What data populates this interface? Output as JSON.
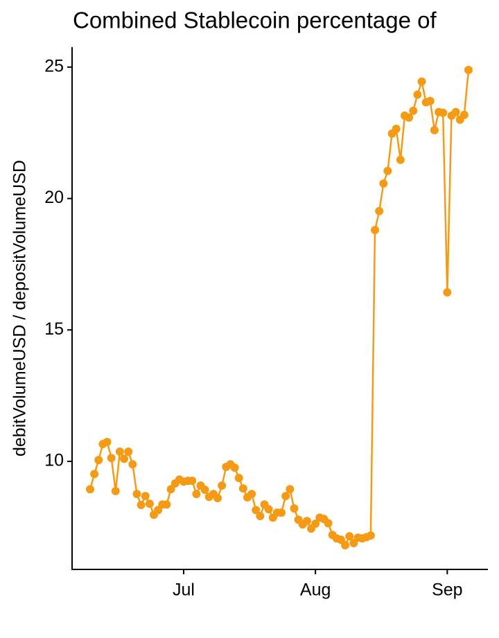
{
  "chart_data": {
    "type": "line",
    "title": "Combined Stablecoin percentage of",
    "y_label": "debitVolumeUSD / depositVolumeUSD",
    "color": "#f59a14",
    "categories": [
      null,
      null,
      null,
      null,
      null,
      null,
      null,
      null,
      null,
      null,
      null,
      null,
      null,
      null,
      null,
      null,
      null,
      null,
      null,
      null,
      null,
      null,
      "Jul",
      null,
      null,
      null,
      null,
      null,
      null,
      null,
      null,
      null,
      null,
      null,
      null,
      null,
      null,
      null,
      null,
      null,
      null,
      null,
      null,
      null,
      null,
      null,
      null,
      null,
      null,
      null,
      null,
      null,
      null,
      "Aug",
      null,
      null,
      null,
      null,
      null,
      null,
      null,
      null,
      null,
      null,
      null,
      null,
      null,
      null,
      null,
      null,
      null,
      null,
      null,
      null,
      null,
      null,
      null,
      null,
      null,
      null,
      null,
      null,
      null,
      null,
      "Sep",
      null,
      null,
      null,
      null,
      null
    ],
    "values": [
      8.94,
      9.52,
      10.05,
      10.66,
      10.74,
      10.13,
      8.87,
      10.37,
      10.1,
      10.37,
      9.89,
      8.76,
      8.34,
      8.68,
      8.39,
      7.97,
      8.15,
      8.36,
      8.36,
      8.94,
      9.16,
      9.31,
      9.23,
      9.26,
      9.26,
      8.76,
      9.08,
      8.92,
      8.65,
      8.76,
      8.6,
      9.08,
      9.79,
      9.89,
      9.76,
      9.37,
      8.97,
      8.63,
      8.76,
      8.15,
      7.92,
      8.36,
      8.18,
      7.86,
      8.05,
      8.05,
      8.68,
      8.94,
      8.21,
      7.78,
      7.6,
      7.73,
      7.44,
      7.63,
      7.86,
      7.81,
      7.65,
      7.2,
      7.07,
      7.02,
      6.81,
      7.15,
      6.89,
      7.1,
      7.07,
      7.12,
      7.18,
      18.8,
      19.52,
      20.57,
      21.05,
      22.47,
      22.65,
      21.47,
      23.15,
      23.08,
      23.34,
      23.95,
      24.45,
      23.66,
      23.71,
      22.6,
      23.29,
      23.26,
      16.43,
      23.15,
      23.29,
      23.0,
      23.18,
      24.89
    ],
    "ylim": [
      5.89,
      25.76
    ],
    "yticks": [
      10,
      15,
      20,
      25
    ],
    "grid": false
  }
}
